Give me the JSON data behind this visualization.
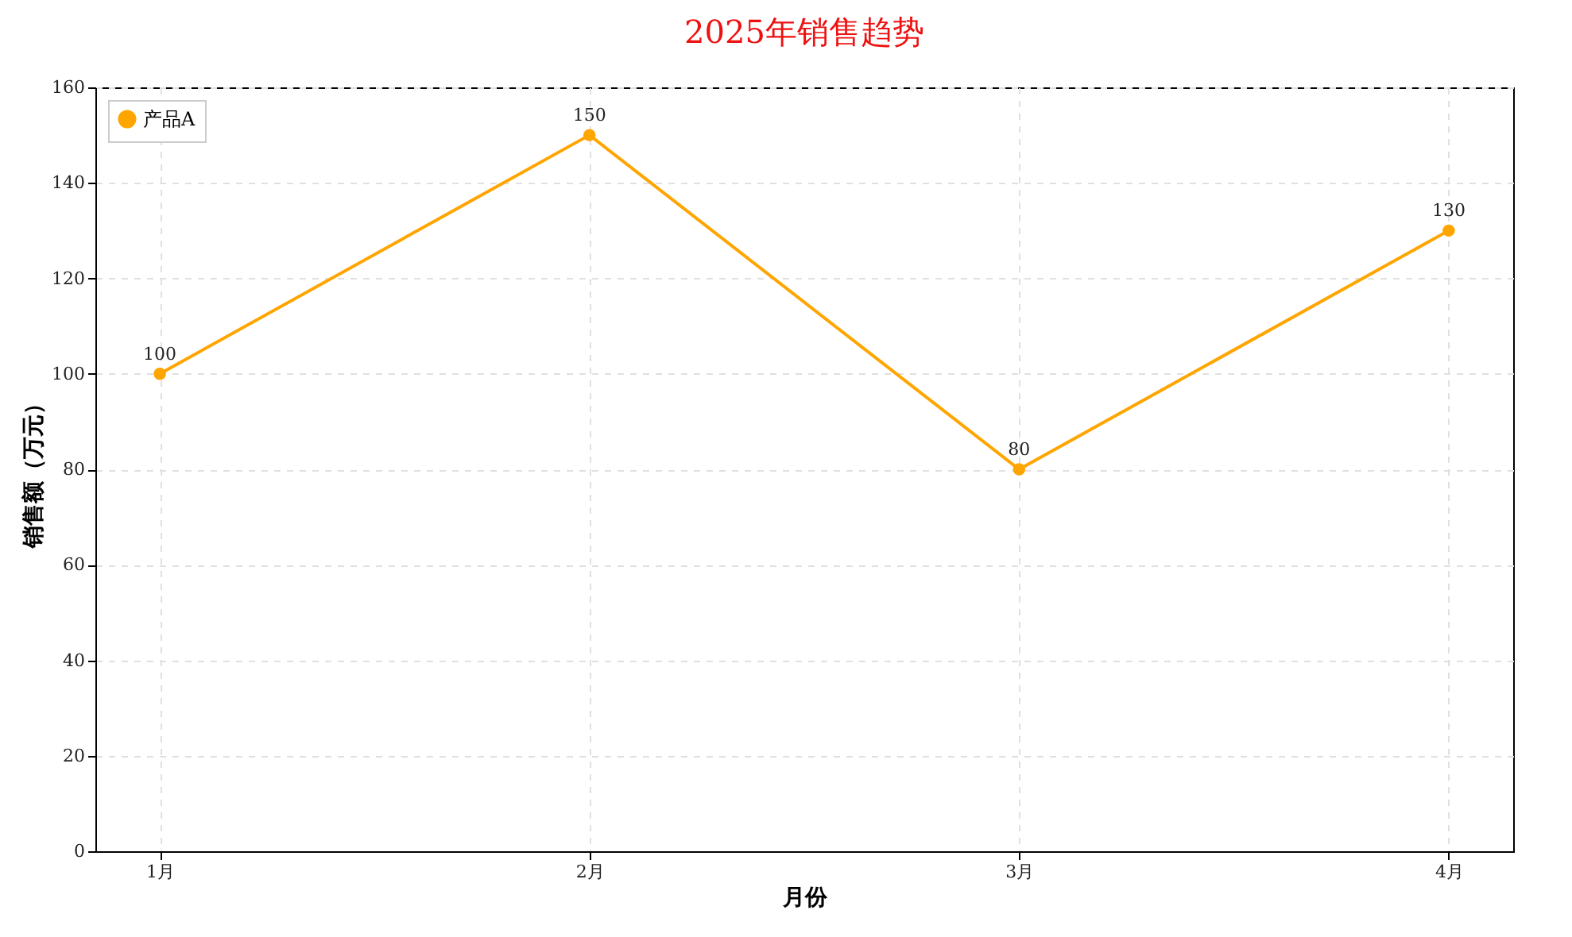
{
  "chart_data": {
    "type": "line",
    "title": "2025年销售趋势",
    "xlabel": "月份",
    "ylabel": "销售额（万元）",
    "categories": [
      "1月",
      "2月",
      "3月",
      "4月"
    ],
    "series": [
      {
        "name": "产品A",
        "color": "#ffa500",
        "values": [
          100,
          150,
          80,
          130
        ]
      }
    ],
    "ylim": [
      0,
      160
    ],
    "yticks": [
      0,
      20,
      40,
      60,
      80,
      100,
      120,
      140,
      160
    ],
    "grid": true,
    "legend": "top left",
    "marker": "circle",
    "data_labels": true
  }
}
